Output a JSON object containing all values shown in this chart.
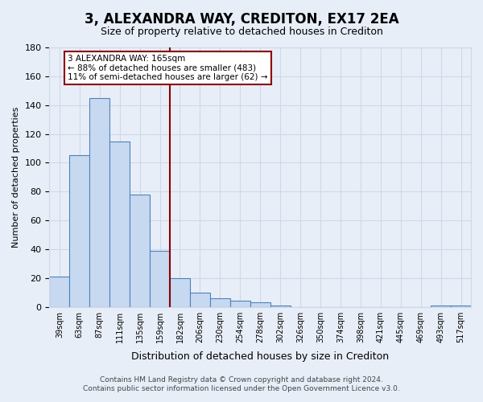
{
  "title": "3, ALEXANDRA WAY, CREDITON, EX17 2EA",
  "subtitle": "Size of property relative to detached houses in Crediton",
  "xlabel": "Distribution of detached houses by size in Crediton",
  "ylabel": "Number of detached properties",
  "bar_labels": [
    "39sqm",
    "63sqm",
    "87sqm",
    "111sqm",
    "135sqm",
    "159sqm",
    "182sqm",
    "206sqm",
    "230sqm",
    "254sqm",
    "278sqm",
    "302sqm",
    "326sqm",
    "350sqm",
    "374sqm",
    "398sqm",
    "421sqm",
    "445sqm",
    "469sqm",
    "493sqm",
    "517sqm"
  ],
  "bar_values": [
    21,
    105,
    145,
    115,
    78,
    39,
    20,
    10,
    6,
    4,
    3,
    1,
    0,
    0,
    0,
    0,
    0,
    0,
    0,
    1,
    1
  ],
  "bar_color": "#c6d9f0",
  "bar_edge_color": "#4f81bd",
  "grid_color": "#d0d8e8",
  "bg_color": "#e8eef8",
  "annotation_line_color": "#8b0000",
  "annotation_box_line1": "3 ALEXANDRA WAY: 165sqm",
  "annotation_box_line2": "← 88% of detached houses are smaller (483)",
  "annotation_box_line3": "11% of semi-detached houses are larger (62) →",
  "annotation_box_color": "white",
  "annotation_box_edge_color": "#8b0000",
  "red_line_x": 5.5,
  "ylim": [
    0,
    180
  ],
  "yticks": [
    0,
    20,
    40,
    60,
    80,
    100,
    120,
    140,
    160,
    180
  ],
  "footer_line1": "Contains HM Land Registry data © Crown copyright and database right 2024.",
  "footer_line2": "Contains public sector information licensed under the Open Government Licence v3.0."
}
